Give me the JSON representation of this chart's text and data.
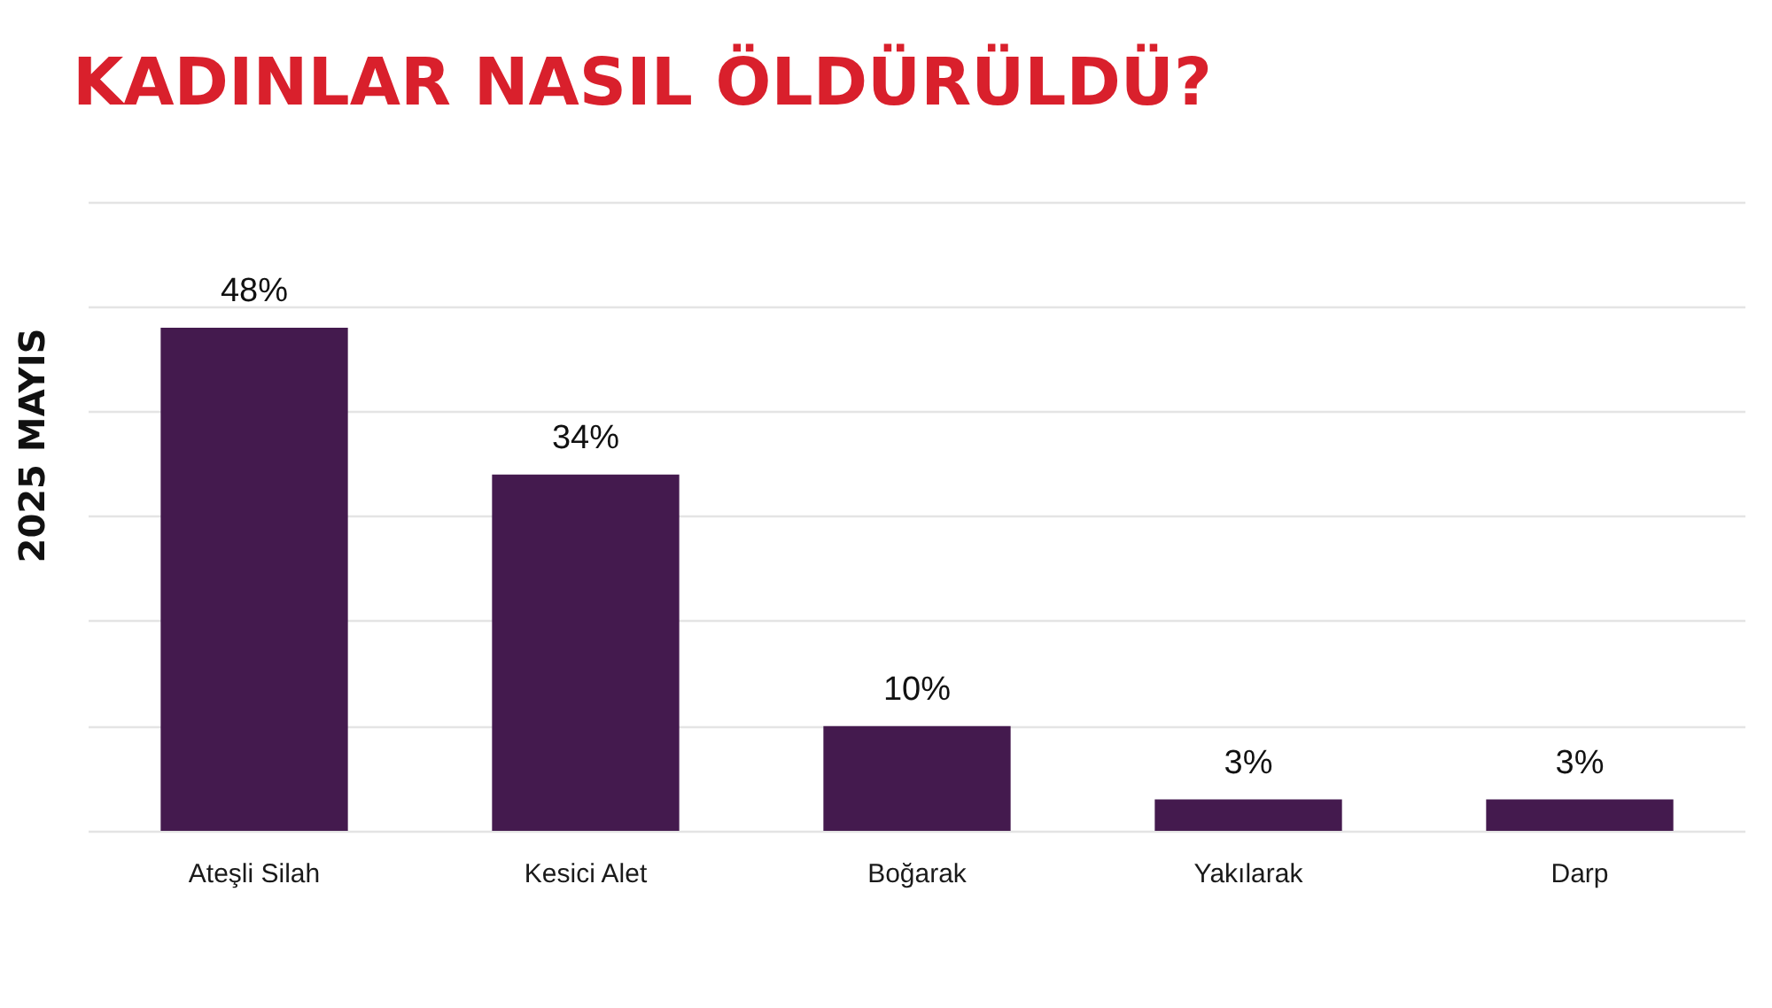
{
  "chart_data": {
    "type": "bar",
    "title": "KADINLAR NASIL ÖLDÜRÜLDÜ?",
    "ylabel": "2025 MAYIS",
    "categories": [
      "Ateşli Silah",
      "Kesici Alet",
      "Boğarak",
      "Yakılarak",
      "Darp"
    ],
    "values": [
      48,
      34,
      10,
      3,
      3
    ],
    "value_labels": [
      "48%",
      "34%",
      "10%",
      "3%",
      "3%"
    ],
    "color": "#441a4e",
    "ylim": [
      0,
      60
    ],
    "yticks": [
      {
        "value": 0,
        "label": null
      },
      {
        "value": 10,
        "label": null
      },
      {
        "value": 20,
        "label": null
      },
      {
        "value": 30,
        "label": null
      },
      {
        "value": 40,
        "label": null
      },
      {
        "value": 50,
        "label": null
      },
      {
        "value": 60,
        "label": null
      }
    ],
    "tick_labels": "x",
    "grid": "y"
  }
}
